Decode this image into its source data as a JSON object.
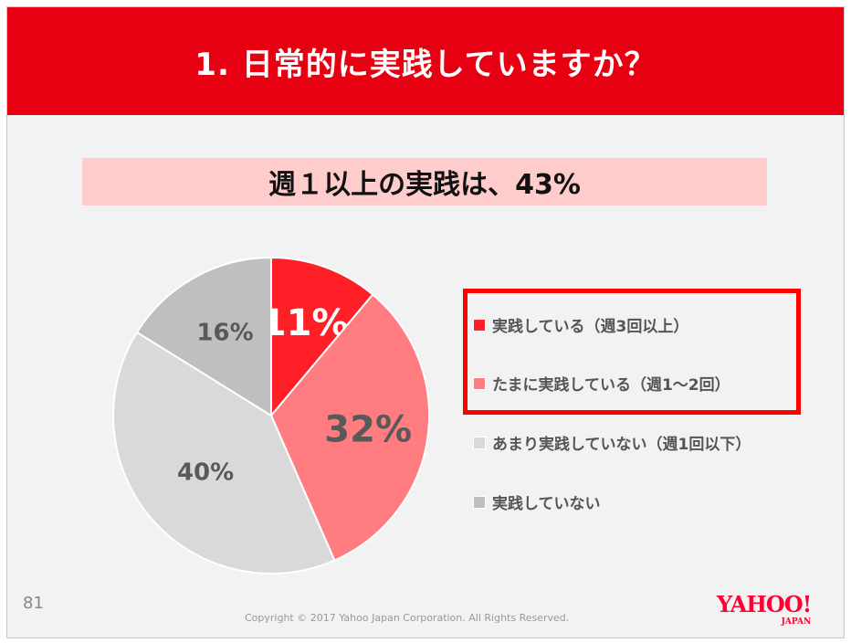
{
  "header": {
    "title": "1. 日常的に実践していますか？"
  },
  "subtitle": "週１以上の実践は、43%",
  "chart_data": {
    "type": "pie",
    "title": "1. 日常的に実践していますか？",
    "start": "top",
    "direction": "clockwise",
    "slices": [
      {
        "label": "実践している（週3回以上）",
        "value": 11,
        "display": "11%",
        "color": "#ff1f26"
      },
      {
        "label": "たまに実践している（週1〜2回）",
        "value": 32,
        "display": "32%",
        "color": "#ff7c80"
      },
      {
        "label": "あまり実践していない（週1回以下）",
        "value": 40,
        "display": "40%",
        "color": "#d9d9d9"
      },
      {
        "label": "実践していない",
        "value": 16,
        "display": "16%",
        "color": "#bfbfbf"
      }
    ],
    "legend_placement": "right"
  },
  "footer": {
    "page": "81",
    "copyright": "Copyright ©  2017  Yahoo Japan Corporation. All Rights Reserved.",
    "logo": "YAHOO! JAPAN"
  }
}
